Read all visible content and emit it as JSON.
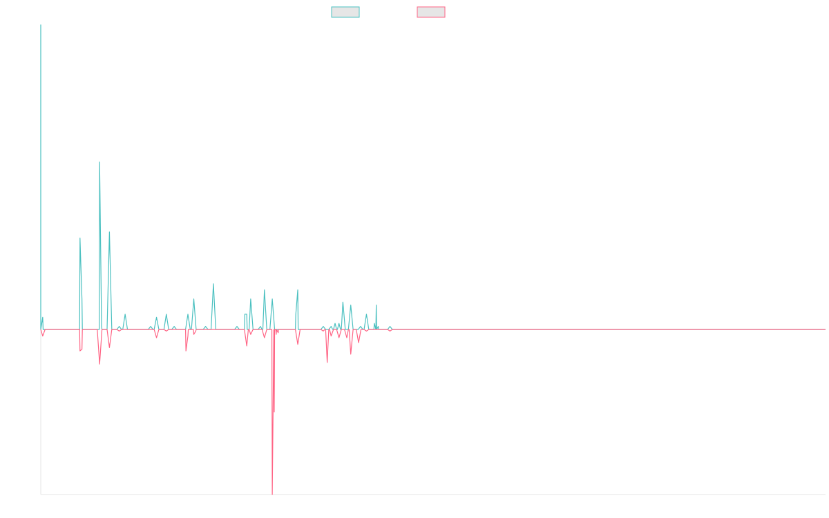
{
  "chart_data": {
    "type": "line",
    "title": "",
    "xlabel": "",
    "ylabel": "",
    "x_range": [
      0,
      200
    ],
    "ylim": [
      -100,
      100
    ],
    "grid": false,
    "legend_placement": "top-center",
    "colors": {
      "series_1": "#4bc0c0",
      "series_2": "#ff6384",
      "legend_fill": "#e6e6e6",
      "axis": "#e5e5e5"
    },
    "series": [
      {
        "name": "",
        "color": "#4bc0c0",
        "spikes": [
          [
            0,
            100
          ],
          [
            0.5,
            4
          ],
          [
            10,
            30
          ],
          [
            10.5,
            10
          ],
          [
            15,
            55
          ],
          [
            15.5,
            1
          ],
          [
            17.5,
            32
          ],
          [
            20,
            1
          ],
          [
            21.5,
            5
          ],
          [
            28,
            1
          ],
          [
            29.5,
            4
          ],
          [
            32,
            5
          ],
          [
            34,
            1
          ],
          [
            37.5,
            5
          ],
          [
            39,
            10
          ],
          [
            42,
            1
          ],
          [
            44,
            15
          ],
          [
            50,
            1
          ],
          [
            52,
            5
          ],
          [
            52.5,
            5
          ],
          [
            53.5,
            10
          ],
          [
            56,
            1
          ],
          [
            57,
            13
          ],
          [
            59,
            10
          ],
          [
            65,
            5
          ],
          [
            65.5,
            13
          ],
          [
            72,
            1
          ],
          [
            74,
            1
          ],
          [
            75,
            2
          ],
          [
            76,
            2
          ],
          [
            77,
            9
          ],
          [
            79,
            8
          ],
          [
            81.5,
            1
          ],
          [
            83,
            5
          ],
          [
            85,
            2
          ],
          [
            85.5,
            8
          ],
          [
            86,
            1
          ],
          [
            89,
            1
          ]
        ]
      },
      {
        "name": "",
        "color": "#ff6384",
        "spikes": [
          [
            0.5,
            -4
          ],
          [
            10,
            -13
          ],
          [
            10.5,
            -12
          ],
          [
            15,
            -21
          ],
          [
            17.5,
            -11
          ],
          [
            20,
            -1
          ],
          [
            29.5,
            -5
          ],
          [
            32,
            -1
          ],
          [
            37,
            -13
          ],
          [
            39,
            -3
          ],
          [
            37.5,
            -4
          ],
          [
            39.5,
            -1
          ],
          [
            52.5,
            -10
          ],
          [
            53.5,
            -3
          ],
          [
            57,
            -5
          ],
          [
            59,
            -100
          ],
          [
            59.5,
            -50
          ],
          [
            60,
            -3
          ],
          [
            60.5,
            -2
          ],
          [
            65.5,
            -9
          ],
          [
            72,
            -1
          ],
          [
            73,
            -20
          ],
          [
            74,
            -4
          ],
          [
            76,
            -5
          ],
          [
            78,
            -5
          ],
          [
            79,
            -15
          ],
          [
            81,
            -8
          ],
          [
            83,
            -1
          ],
          [
            89,
            -1
          ]
        ]
      }
    ]
  }
}
